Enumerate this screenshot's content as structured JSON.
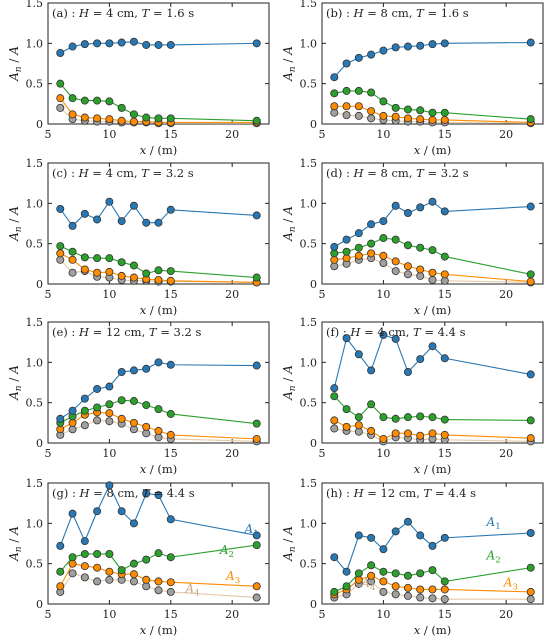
{
  "figure": {
    "ylabel": "A_n / A",
    "xlabel": "x / (m)",
    "series_colors": {
      "A1": "#2878b5",
      "A2": "#2ca02c",
      "A3": "#ff8c00",
      "A4": "#a0a0a0"
    },
    "xticks": [
      5,
      10,
      15,
      20
    ],
    "yticks": [
      "0",
      "0.5",
      "1.0",
      "1.5"
    ],
    "ylim": [
      0,
      1.5
    ],
    "xlim": [
      5,
      23
    ]
  },
  "chart_data": [
    {
      "type": "line",
      "title": "(a) : H = 4 cm, T = 1.6 s",
      "x": [
        6,
        7,
        8,
        9,
        10,
        11,
        12,
        13,
        14,
        15,
        22
      ],
      "series": [
        {
          "name": "A1",
          "values": [
            0.88,
            0.96,
            0.99,
            1.0,
            1.0,
            1.01,
            1.02,
            0.98,
            0.98,
            0.98,
            1.0
          ]
        },
        {
          "name": "A2",
          "values": [
            0.5,
            0.32,
            0.29,
            0.29,
            0.28,
            0.2,
            0.12,
            0.08,
            0.07,
            0.07,
            0.04
          ]
        },
        {
          "name": "A3",
          "values": [
            0.32,
            0.12,
            0.08,
            0.07,
            0.06,
            0.04,
            0.03,
            0.03,
            0.02,
            0.02,
            0.02
          ]
        },
        {
          "name": "A4",
          "values": [
            0.2,
            0.06,
            0.04,
            0.03,
            0.03,
            0.02,
            0.02,
            0.02,
            0.01,
            0.01,
            0.01
          ]
        }
      ],
      "xlim": [
        5,
        23
      ],
      "ylim": [
        0,
        1.5
      ]
    },
    {
      "type": "line",
      "title": "(b) : H = 8 cm, T = 1.6 s",
      "x": [
        6,
        7,
        8,
        9,
        10,
        11,
        12,
        13,
        14,
        15,
        22
      ],
      "series": [
        {
          "name": "A1",
          "values": [
            0.58,
            0.75,
            0.82,
            0.86,
            0.91,
            0.95,
            0.96,
            0.97,
            0.99,
            1.0,
            1.01
          ]
        },
        {
          "name": "A2",
          "values": [
            0.38,
            0.41,
            0.41,
            0.39,
            0.28,
            0.2,
            0.18,
            0.17,
            0.14,
            0.14,
            0.06
          ]
        },
        {
          "name": "A3",
          "values": [
            0.22,
            0.22,
            0.22,
            0.16,
            0.1,
            0.09,
            0.07,
            0.06,
            0.05,
            0.05,
            0.02
          ]
        },
        {
          "name": "A4",
          "values": [
            0.14,
            0.11,
            0.1,
            0.07,
            0.05,
            0.04,
            0.03,
            0.03,
            0.02,
            0.02,
            0.01
          ]
        }
      ],
      "xlim": [
        5,
        23
      ],
      "ylim": [
        0,
        1.5
      ]
    },
    {
      "type": "line",
      "title": "(c) : H = 4 cm, T = 3.2 s",
      "x": [
        6,
        7,
        8,
        9,
        10,
        11,
        12,
        13,
        14,
        15,
        22
      ],
      "series": [
        {
          "name": "A1",
          "values": [
            0.93,
            0.72,
            0.87,
            0.8,
            1.02,
            0.78,
            0.97,
            0.76,
            0.76,
            0.92,
            0.85
          ]
        },
        {
          "name": "A2",
          "values": [
            0.47,
            0.4,
            0.33,
            0.32,
            0.32,
            0.27,
            0.23,
            0.13,
            0.17,
            0.16,
            0.08
          ]
        },
        {
          "name": "A3",
          "values": [
            0.38,
            0.3,
            0.18,
            0.14,
            0.15,
            0.1,
            0.08,
            0.06,
            0.05,
            0.04,
            0.02
          ]
        },
        {
          "name": "A4",
          "values": [
            0.3,
            0.14,
            0.16,
            0.09,
            0.08,
            0.05,
            0.04,
            0.04,
            0.03,
            0.03,
            0.02
          ]
        }
      ],
      "xlim": [
        5,
        23
      ],
      "ylim": [
        0,
        1.5
      ]
    },
    {
      "type": "line",
      "title": "(d) : H = 8 cm, T = 3.2 s",
      "x": [
        6,
        7,
        8,
        9,
        10,
        11,
        12,
        13,
        14,
        15,
        22
      ],
      "series": [
        {
          "name": "A1",
          "values": [
            0.46,
            0.55,
            0.63,
            0.74,
            0.78,
            0.97,
            0.88,
            0.95,
            1.02,
            0.9,
            0.96
          ]
        },
        {
          "name": "A2",
          "values": [
            0.38,
            0.4,
            0.45,
            0.5,
            0.57,
            0.55,
            0.48,
            0.45,
            0.42,
            0.34,
            0.12
          ]
        },
        {
          "name": "A3",
          "values": [
            0.3,
            0.32,
            0.35,
            0.38,
            0.35,
            0.28,
            0.22,
            0.18,
            0.14,
            0.12,
            0.03
          ]
        },
        {
          "name": "A4",
          "values": [
            0.22,
            0.25,
            0.3,
            0.32,
            0.26,
            0.16,
            0.12,
            0.1,
            0.05,
            0.04,
            0.02
          ]
        }
      ],
      "xlim": [
        5,
        23
      ],
      "ylim": [
        0,
        1.5
      ]
    },
    {
      "type": "line",
      "title": "(e) : H = 12 cm, T = 3.2 s",
      "x": [
        6,
        7,
        8,
        9,
        10,
        11,
        12,
        13,
        14,
        15,
        22
      ],
      "series": [
        {
          "name": "A1",
          "values": [
            0.3,
            0.4,
            0.55,
            0.67,
            0.7,
            0.88,
            0.9,
            0.92,
            1.0,
            0.97,
            0.96
          ]
        },
        {
          "name": "A2",
          "values": [
            0.25,
            0.33,
            0.4,
            0.44,
            0.48,
            0.53,
            0.52,
            0.47,
            0.42,
            0.36,
            0.24
          ]
        },
        {
          "name": "A3",
          "values": [
            0.17,
            0.25,
            0.35,
            0.38,
            0.37,
            0.3,
            0.25,
            0.2,
            0.15,
            0.1,
            0.05
          ]
        },
        {
          "name": "A4",
          "values": [
            0.1,
            0.17,
            0.22,
            0.28,
            0.27,
            0.24,
            0.17,
            0.12,
            0.07,
            0.05,
            0.02
          ]
        }
      ],
      "xlim": [
        5,
        23
      ],
      "ylim": [
        0,
        1.5
      ]
    },
    {
      "type": "line",
      "title": "(f) : H = 4 cm, T = 4.4 s",
      "x": [
        6,
        7,
        8,
        9,
        10,
        11,
        12,
        13,
        14,
        15,
        22
      ],
      "series": [
        {
          "name": "A1",
          "values": [
            0.68,
            1.3,
            1.1,
            0.9,
            1.34,
            1.29,
            0.88,
            1.04,
            1.2,
            1.05,
            0.85
          ]
        },
        {
          "name": "A2",
          "values": [
            0.58,
            0.42,
            0.32,
            0.48,
            0.32,
            0.3,
            0.32,
            0.33,
            0.32,
            0.29,
            0.28
          ]
        },
        {
          "name": "A3",
          "values": [
            0.28,
            0.2,
            0.22,
            0.15,
            0.05,
            0.12,
            0.12,
            0.09,
            0.12,
            0.1,
            0.06
          ]
        },
        {
          "name": "A4",
          "values": [
            0.18,
            0.15,
            0.14,
            0.1,
            0.02,
            0.07,
            0.06,
            0.04,
            0.05,
            0.04,
            0.02
          ]
        }
      ],
      "xlim": [
        5,
        23
      ],
      "ylim": [
        0,
        1.5
      ]
    },
    {
      "type": "line",
      "title": "(g) : H = 8 cm, T = 4.4 s",
      "x": [
        6,
        7,
        8,
        9,
        10,
        11,
        12,
        13,
        14,
        15,
        22
      ],
      "series": [
        {
          "name": "A1",
          "values": [
            0.72,
            1.12,
            0.78,
            1.15,
            1.47,
            1.15,
            1.0,
            1.37,
            1.35,
            1.05,
            0.85
          ]
        },
        {
          "name": "A2",
          "values": [
            0.4,
            0.58,
            0.62,
            0.62,
            0.62,
            0.42,
            0.5,
            0.55,
            0.63,
            0.58,
            0.73
          ]
        },
        {
          "name": "A3",
          "values": [
            0.22,
            0.5,
            0.47,
            0.45,
            0.4,
            0.37,
            0.37,
            0.3,
            0.28,
            0.27,
            0.22
          ]
        },
        {
          "name": "A4",
          "values": [
            0.15,
            0.38,
            0.33,
            0.28,
            0.3,
            0.3,
            0.28,
            0.22,
            0.17,
            0.15,
            0.08
          ]
        }
      ],
      "labels": [
        "A1",
        "A2",
        "A3",
        "A4"
      ],
      "xlim": [
        5,
        23
      ],
      "ylim": [
        0,
        1.5
      ]
    },
    {
      "type": "line",
      "title": "(h) : H = 12 cm, T = 4.4 s",
      "x": [
        6,
        7,
        8,
        9,
        10,
        11,
        12,
        13,
        14,
        15,
        22
      ],
      "series": [
        {
          "name": "A1",
          "values": [
            0.58,
            0.4,
            0.85,
            0.82,
            0.68,
            0.9,
            1.02,
            0.85,
            0.72,
            0.82,
            0.88
          ]
        },
        {
          "name": "A2",
          "values": [
            0.15,
            0.22,
            0.38,
            0.48,
            0.4,
            0.38,
            0.35,
            0.38,
            0.42,
            0.28,
            0.45
          ]
        },
        {
          "name": "A3",
          "values": [
            0.12,
            0.18,
            0.3,
            0.35,
            0.28,
            0.22,
            0.2,
            0.18,
            0.18,
            0.18,
            0.15
          ]
        },
        {
          "name": "A4",
          "values": [
            0.08,
            0.12,
            0.25,
            0.28,
            0.15,
            0.12,
            0.1,
            0.08,
            0.07,
            0.06,
            0.06
          ]
        }
      ],
      "labels": [
        "A1",
        "A2",
        "A3",
        "A4"
      ],
      "xlim": [
        5,
        23
      ],
      "ylim": [
        0,
        1.5
      ]
    }
  ]
}
